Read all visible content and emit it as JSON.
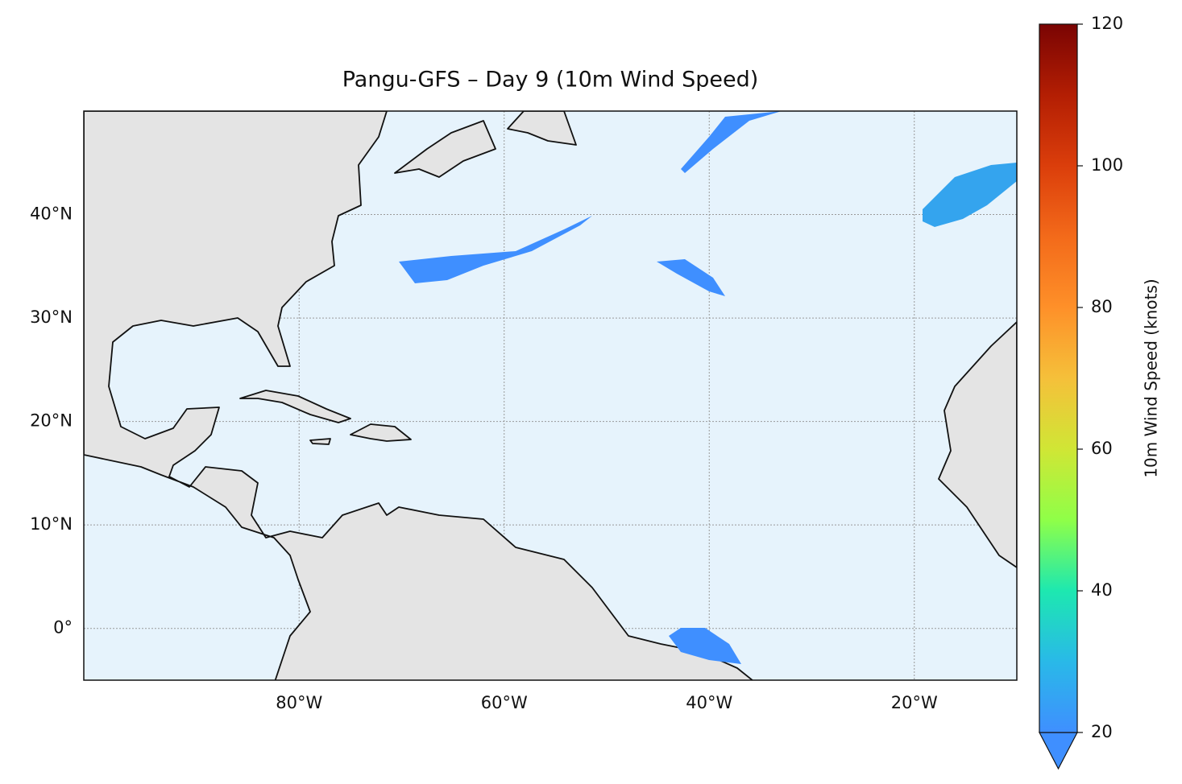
{
  "chart_data": {
    "type": "map",
    "title": "Pangu-GFS – Day 9 (10m Wind Speed)",
    "xlim": [
      -101,
      -10
    ],
    "ylim": [
      -5,
      50
    ],
    "xticks": [
      {
        "value": -80,
        "label": "80°W"
      },
      {
        "value": -60,
        "label": "60°W"
      },
      {
        "value": -40,
        "label": "40°W"
      },
      {
        "value": -20,
        "label": "20°W"
      }
    ],
    "yticks": [
      {
        "value": 0,
        "label": "0°"
      },
      {
        "value": 10,
        "label": "10°N"
      },
      {
        "value": 20,
        "label": "20°N"
      },
      {
        "value": 30,
        "label": "30°N"
      },
      {
        "value": 40,
        "label": "40°N"
      }
    ],
    "grid": true,
    "colorbar": {
      "label": "10m Wind Speed (knots)",
      "lim": [
        20,
        120
      ],
      "ticks": [
        20,
        40,
        60,
        80,
        100,
        120
      ],
      "colors": [
        "#3f8fff",
        "#29b9e8",
        "#1de8b0",
        "#8fff48",
        "#d0e635",
        "#f5c03a",
        "#fe9029",
        "#f36a1a",
        "#db3e0b",
        "#b31e03",
        "#7a0403"
      ]
    }
  }
}
